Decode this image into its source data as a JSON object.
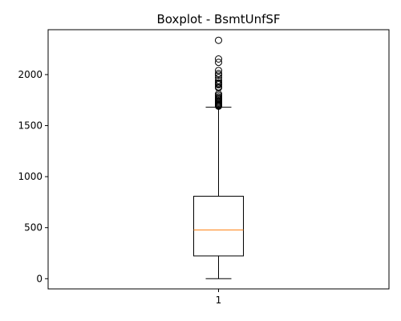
{
  "chart_data": {
    "type": "boxplot",
    "title": "Boxplot - BsmtUnfSF",
    "xlabel": "",
    "ylabel": "",
    "categories": [
      "1"
    ],
    "ylim": [
      -100,
      2440
    ],
    "yticks": [
      0,
      500,
      1000,
      1500,
      2000
    ],
    "ytick_labels": [
      "0",
      "500",
      "1000",
      "1500",
      "2000"
    ],
    "grid": false,
    "box": {
      "whisker_low": 0,
      "q1": 223,
      "median": 477,
      "q3": 808,
      "whisker_high": 1680
    },
    "outliers": [
      1690,
      1695,
      1700,
      1705,
      1710,
      1720,
      1730,
      1740,
      1750,
      1760,
      1770,
      1780,
      1795,
      1810,
      1870,
      1880,
      1900,
      1910,
      1920,
      1940,
      1970,
      1995,
      2010,
      2040,
      2120,
      2153,
      2336
    ],
    "colors": {
      "box": "#000000",
      "median": "#ff7f0e",
      "whisker": "#000000",
      "outlier": "#000000"
    }
  }
}
